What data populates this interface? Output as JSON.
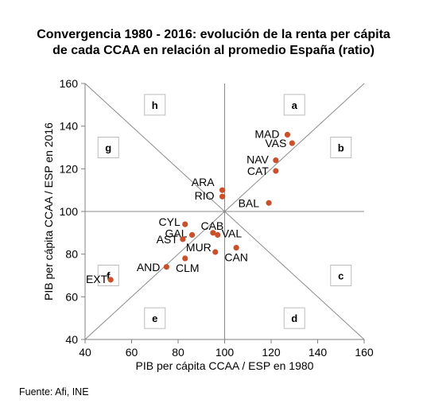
{
  "title_line1": "Convergencia 1980 - 2016: evolución de la renta per cápita",
  "title_line2": "de cada CCAA en relación al promedio España (ratio)",
  "source": "Fuente: Afi, INE",
  "chart_data": {
    "type": "scatter",
    "title": "Convergencia 1980 - 2016: evolución de la renta per cápita de cada CCAA en relación al promedio España (ratio)",
    "xlabel": "PIB per cápita CCAA / ESP en 1980",
    "ylabel": "PIB per cápita CCAA / ESP en 2016",
    "xlim": [
      40,
      160
    ],
    "ylim": [
      40,
      160
    ],
    "xticks": [
      40,
      60,
      80,
      100,
      120,
      140,
      160
    ],
    "yticks": [
      40,
      60,
      80,
      100,
      120,
      140,
      160
    ],
    "grid": false,
    "reference_lines": [
      "x=100",
      "y=100",
      "y=x",
      "y=200-x"
    ],
    "point_color": "#c8502a",
    "points": [
      {
        "label": "MAD",
        "x": 127,
        "y": 136
      },
      {
        "label": "VAS",
        "x": 129,
        "y": 132
      },
      {
        "label": "NAV",
        "x": 122,
        "y": 124
      },
      {
        "label": "CAT",
        "x": 122,
        "y": 119
      },
      {
        "label": "ARA",
        "x": 99,
        "y": 110
      },
      {
        "label": "RIO",
        "x": 99,
        "y": 107
      },
      {
        "label": "BAL",
        "x": 119,
        "y": 104
      },
      {
        "label": "CYL",
        "x": 83,
        "y": 94
      },
      {
        "label": "CAB",
        "x": 95,
        "y": 90
      },
      {
        "label": "GAL",
        "x": 86,
        "y": 89
      },
      {
        "label": "VAL",
        "x": 97,
        "y": 89
      },
      {
        "label": "AST",
        "x": 82,
        "y": 87
      },
      {
        "label": "MUR",
        "x": 96,
        "y": 81
      },
      {
        "label": "CAN",
        "x": 105,
        "y": 83
      },
      {
        "label": "CLM",
        "x": 83,
        "y": 78
      },
      {
        "label": "AND",
        "x": 75,
        "y": 74
      },
      {
        "label": "EXT",
        "x": 51,
        "y": 68
      }
    ],
    "zones": [
      {
        "letter": "a",
        "x": 130,
        "y": 150
      },
      {
        "letter": "b",
        "x": 150,
        "y": 130
      },
      {
        "letter": "c",
        "x": 150,
        "y": 70
      },
      {
        "letter": "d",
        "x": 130,
        "y": 50
      },
      {
        "letter": "e",
        "x": 70,
        "y": 50
      },
      {
        "letter": "f",
        "x": 50,
        "y": 70
      },
      {
        "letter": "g",
        "x": 50,
        "y": 130
      },
      {
        "letter": "h",
        "x": 70,
        "y": 150
      }
    ]
  }
}
